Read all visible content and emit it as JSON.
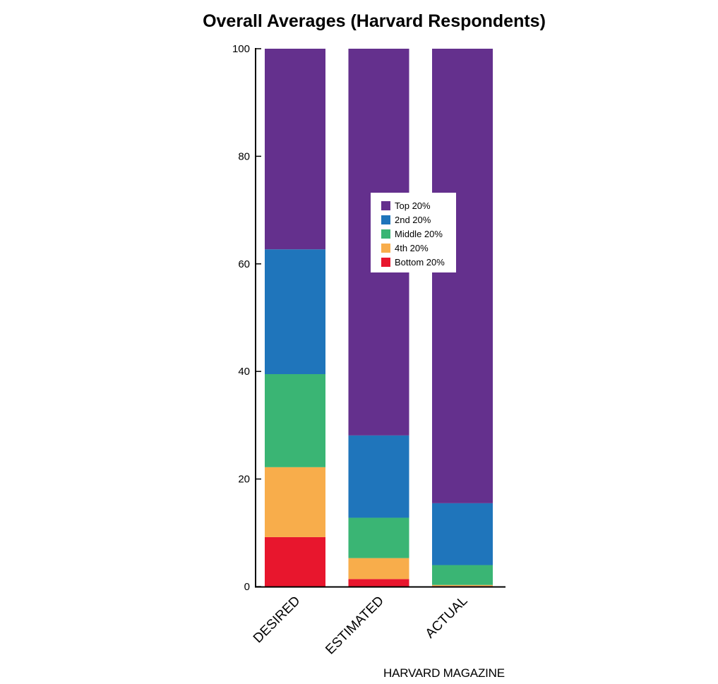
{
  "chart_data": {
    "type": "bar",
    "stacked": true,
    "title": "Overall Averages (Harvard Respondents)",
    "categories": [
      "DESIRED",
      "ESTIMATED",
      "ACTUAL"
    ],
    "series": [
      {
        "name": "Bottom 20%",
        "color": "#e8162d",
        "values": [
          9.2,
          1.4,
          0.1
        ]
      },
      {
        "name": "4th 20%",
        "color": "#f8ad4b",
        "values": [
          13.0,
          3.9,
          0.2
        ]
      },
      {
        "name": "Middle 20%",
        "color": "#3ab574",
        "values": [
          17.3,
          7.5,
          3.7
        ]
      },
      {
        "name": "2nd 20%",
        "color": "#1f75bb",
        "values": [
          23.2,
          15.3,
          11.5
        ]
      },
      {
        "name": "Top 20%",
        "color": "#64308d",
        "values": [
          37.3,
          71.9,
          84.5
        ]
      }
    ],
    "ylim": [
      0,
      100
    ],
    "yticks": [
      0,
      20,
      40,
      60,
      80,
      100
    ],
    "xlabel": "",
    "ylabel": "",
    "grid": false,
    "legend_position": "top-center",
    "legend_order": [
      "Top 20%",
      "2nd 20%",
      "Middle 20%",
      "4th 20%",
      "Bottom 20%"
    ]
  },
  "credit": "HARVARD MAGAZINE"
}
